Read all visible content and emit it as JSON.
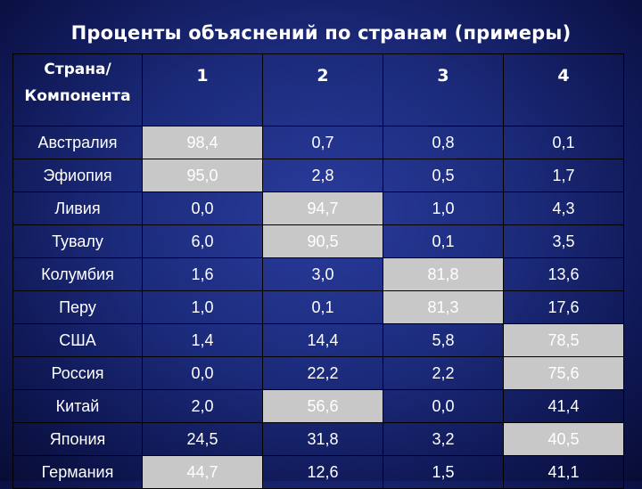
{
  "title": "Проценты объяснений по странам (примеры)",
  "table": {
    "corner_line1": "Страна/",
    "corner_line2": "Компонента",
    "columns": [
      "1",
      "2",
      "3",
      "4"
    ],
    "rows": [
      {
        "country": "Австралия",
        "values": [
          "98,4",
          "0,7",
          "0,8",
          "0,1"
        ],
        "highlight": 0
      },
      {
        "country": "Эфиопия",
        "values": [
          "95,0",
          "2,8",
          "0,5",
          "1,7"
        ],
        "highlight": 0
      },
      {
        "country": "Ливия",
        "values": [
          "0,0",
          "94,7",
          "1,0",
          "4,3"
        ],
        "highlight": 1
      },
      {
        "country": "Тувалу",
        "values": [
          "6,0",
          "90,5",
          "0,1",
          "3,5"
        ],
        "highlight": 1
      },
      {
        "country": "Колумбия",
        "values": [
          "1,6",
          "3,0",
          "81,8",
          "13,6"
        ],
        "highlight": 2
      },
      {
        "country": "Перу",
        "values": [
          "1,0",
          "0,1",
          "81,3",
          "17,6"
        ],
        "highlight": 2
      },
      {
        "country": "США",
        "values": [
          "1,4",
          "14,4",
          "5,8",
          "78,5"
        ],
        "highlight": 3
      },
      {
        "country": "Россия",
        "values": [
          "0,0",
          "22,2",
          "2,2",
          "75,6"
        ],
        "highlight": 3
      },
      {
        "country": "Китай",
        "values": [
          "2,0",
          "56,6",
          "0,0",
          "41,4"
        ],
        "highlight": 1
      },
      {
        "country": "Япония",
        "values": [
          "24,5",
          "31,8",
          "3,2",
          "40,5"
        ],
        "highlight": 3
      },
      {
        "country": "Германия",
        "values": [
          "44,7",
          "12,6",
          "1,5",
          "41,1"
        ],
        "highlight": 0
      }
    ],
    "highlight_color": "#c8c8c8",
    "background_color": "#1b2a7a"
  }
}
